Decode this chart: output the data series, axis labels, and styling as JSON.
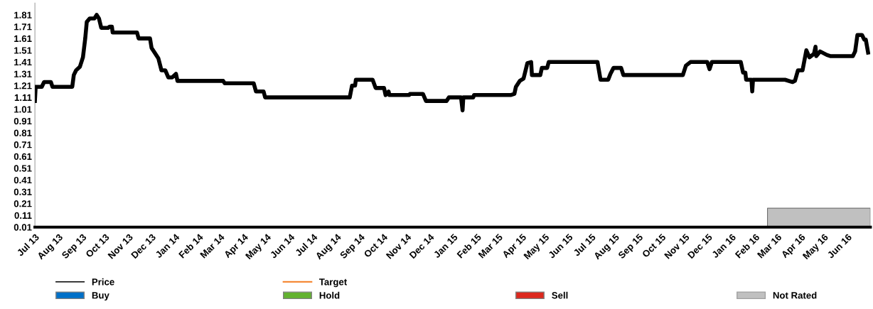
{
  "chart_data": {
    "type": "line",
    "legend": "bottom",
    "grid": false,
    "marker": "none",
    "line_style": "solid",
    "ylim": [
      0.01,
      1.91
    ],
    "yticks": [
      0.01,
      0.11,
      0.21,
      0.31,
      0.41,
      0.51,
      0.61,
      0.71,
      0.81,
      0.91,
      1.01,
      1.11,
      1.21,
      1.31,
      1.41,
      1.51,
      1.61,
      1.71,
      1.81
    ],
    "xlim": [
      "2013-07-01",
      "2016-07-01"
    ],
    "xticks": [
      {
        "value": "2013-07",
        "label": "Jul 13"
      },
      {
        "value": "2013-08",
        "label": "Aug 13"
      },
      {
        "value": "2013-09",
        "label": "Sep 13"
      },
      {
        "value": "2013-10",
        "label": "Oct 13"
      },
      {
        "value": "2013-11",
        "label": "Nov 13"
      },
      {
        "value": "2013-12",
        "label": "Dec 13"
      },
      {
        "value": "2014-01",
        "label": "Jan 14"
      },
      {
        "value": "2014-02",
        "label": "Feb 14"
      },
      {
        "value": "2014-03",
        "label": "Mar 14"
      },
      {
        "value": "2014-04",
        "label": "Apr 14"
      },
      {
        "value": "2014-05",
        "label": "May 14"
      },
      {
        "value": "2014-06",
        "label": "Jun 14"
      },
      {
        "value": "2014-07",
        "label": "Jul 14"
      },
      {
        "value": "2014-08",
        "label": "Aug 14"
      },
      {
        "value": "2014-09",
        "label": "Sep 14"
      },
      {
        "value": "2014-10",
        "label": "Oct 14"
      },
      {
        "value": "2014-11",
        "label": "Nov 14"
      },
      {
        "value": "2014-12",
        "label": "Dec 14"
      },
      {
        "value": "2015-01",
        "label": "Jan 15"
      },
      {
        "value": "2015-02",
        "label": "Feb 15"
      },
      {
        "value": "2015-03",
        "label": "Mar 15"
      },
      {
        "value": "2015-04",
        "label": "Apr 15"
      },
      {
        "value": "2015-05",
        "label": "May 15"
      },
      {
        "value": "2015-06",
        "label": "Jun 15"
      },
      {
        "value": "2015-07",
        "label": "Jul 15"
      },
      {
        "value": "2015-08",
        "label": "Aug 15"
      },
      {
        "value": "2015-09",
        "label": "Sep 15"
      },
      {
        "value": "2015-10",
        "label": "Oct 15"
      },
      {
        "value": "2015-11",
        "label": "Nov 15"
      },
      {
        "value": "2015-12",
        "label": "Dec 15"
      },
      {
        "value": "2016-01",
        "label": "Jan 16"
      },
      {
        "value": "2016-02",
        "label": "Feb 16"
      },
      {
        "value": "2016-03",
        "label": "Mar 16"
      },
      {
        "value": "2016-04",
        "label": "Apr 16"
      },
      {
        "value": "2016-05",
        "label": "May 16"
      },
      {
        "value": "2016-06",
        "label": "Jun 16"
      }
    ],
    "series": [
      {
        "name": "Price",
        "color": "#000000",
        "x": [
          "2013-07-01",
          "2013-07-02",
          "2013-07-10",
          "2013-07-13",
          "2013-07-22",
          "2013-07-24",
          "2013-08-19",
          "2013-08-21",
          "2013-08-24",
          "2013-08-29",
          "2013-09-02",
          "2013-09-05",
          "2013-09-07",
          "2013-09-11",
          "2013-09-17",
          "2013-09-20",
          "2013-09-23",
          "2013-09-26",
          "2013-10-05",
          "2013-10-07",
          "2013-10-10",
          "2013-10-11",
          "2013-11-12",
          "2013-11-14",
          "2013-11-29",
          "2013-12-01",
          "2013-12-05",
          "2013-12-10",
          "2013-12-14",
          "2013-12-19",
          "2013-12-23",
          "2013-12-28",
          "2014-01-02",
          "2014-01-04",
          "2014-03-05",
          "2014-03-07",
          "2014-04-14",
          "2014-04-17",
          "2014-04-27",
          "2014-04-29",
          "2014-08-18",
          "2014-08-21",
          "2014-08-25",
          "2014-08-26",
          "2014-09-17",
          "2014-09-21",
          "2014-10-02",
          "2014-10-04",
          "2014-10-08",
          "2014-10-09",
          "2014-11-04",
          "2014-11-05",
          "2014-11-22",
          "2014-11-26",
          "2014-12-23",
          "2014-12-26",
          "2015-01-11",
          "2015-01-13",
          "2015-01-14",
          "2015-01-27",
          "2015-01-28",
          "2015-03-17",
          "2015-03-22",
          "2015-03-24",
          "2015-03-29",
          "2015-04-03",
          "2015-04-08",
          "2015-04-13",
          "2015-04-14",
          "2015-04-25",
          "2015-04-27",
          "2015-05-04",
          "2015-05-06",
          "2015-07-09",
          "2015-07-13",
          "2015-07-23",
          "2015-07-26",
          "2015-07-30",
          "2015-08-09",
          "2015-08-12",
          "2015-10-29",
          "2015-11-02",
          "2015-11-08",
          "2015-11-30",
          "2015-12-03",
          "2015-12-06",
          "2016-01-13",
          "2016-01-16",
          "2016-01-19",
          "2016-01-20",
          "2016-01-27",
          "2016-01-28",
          "2016-01-29",
          "2016-03-11",
          "2016-03-21",
          "2016-03-24",
          "2016-03-28",
          "2016-04-03",
          "2016-04-08",
          "2016-04-12",
          "2016-04-18",
          "2016-04-20",
          "2016-04-21",
          "2016-04-26",
          "2016-05-05",
          "2016-05-10",
          "2016-06-08",
          "2016-06-11",
          "2016-06-14",
          "2016-06-20",
          "2016-06-23",
          "2016-06-25",
          "2016-06-28"
        ],
        "values": [
          1.08,
          1.2,
          1.2,
          1.24,
          1.24,
          1.2,
          1.2,
          1.3,
          1.34,
          1.37,
          1.45,
          1.61,
          1.75,
          1.78,
          1.78,
          1.81,
          1.78,
          1.7,
          1.7,
          1.71,
          1.71,
          1.66,
          1.66,
          1.61,
          1.61,
          1.53,
          1.49,
          1.44,
          1.34,
          1.34,
          1.28,
          1.28,
          1.31,
          1.25,
          1.25,
          1.23,
          1.23,
          1.16,
          1.16,
          1.11,
          1.11,
          1.21,
          1.21,
          1.26,
          1.26,
          1.19,
          1.19,
          1.13,
          1.16,
          1.13,
          1.13,
          1.14,
          1.14,
          1.08,
          1.08,
          1.11,
          1.11,
          1.0,
          1.11,
          1.11,
          1.13,
          1.13,
          1.14,
          1.2,
          1.25,
          1.27,
          1.4,
          1.41,
          1.3,
          1.3,
          1.36,
          1.36,
          1.41,
          1.41,
          1.26,
          1.26,
          1.31,
          1.36,
          1.36,
          1.3,
          1.3,
          1.38,
          1.41,
          1.41,
          1.35,
          1.41,
          1.41,
          1.32,
          1.32,
          1.26,
          1.26,
          1.16,
          1.26,
          1.26,
          1.24,
          1.25,
          1.34,
          1.34,
          1.51,
          1.45,
          1.48,
          1.54,
          1.46,
          1.5,
          1.47,
          1.46,
          1.46,
          1.5,
          1.64,
          1.64,
          1.6,
          1.6,
          1.49
        ]
      },
      {
        "name": "Target",
        "type": "step",
        "color": "#f47c20"
      },
      {
        "name": "Buy",
        "type": "bar",
        "color": "#0070c8"
      },
      {
        "name": "Hold",
        "type": "bar",
        "color": "#62b22f"
      },
      {
        "name": "Sell",
        "type": "bar",
        "color": "#dc281e"
      },
      {
        "name": "Not Rated",
        "type": "area",
        "color": "#c0c0c0",
        "x": [
          "2016-02-17",
          "2016-07-01"
        ],
        "values": [
          0.17,
          0.17
        ]
      }
    ]
  }
}
